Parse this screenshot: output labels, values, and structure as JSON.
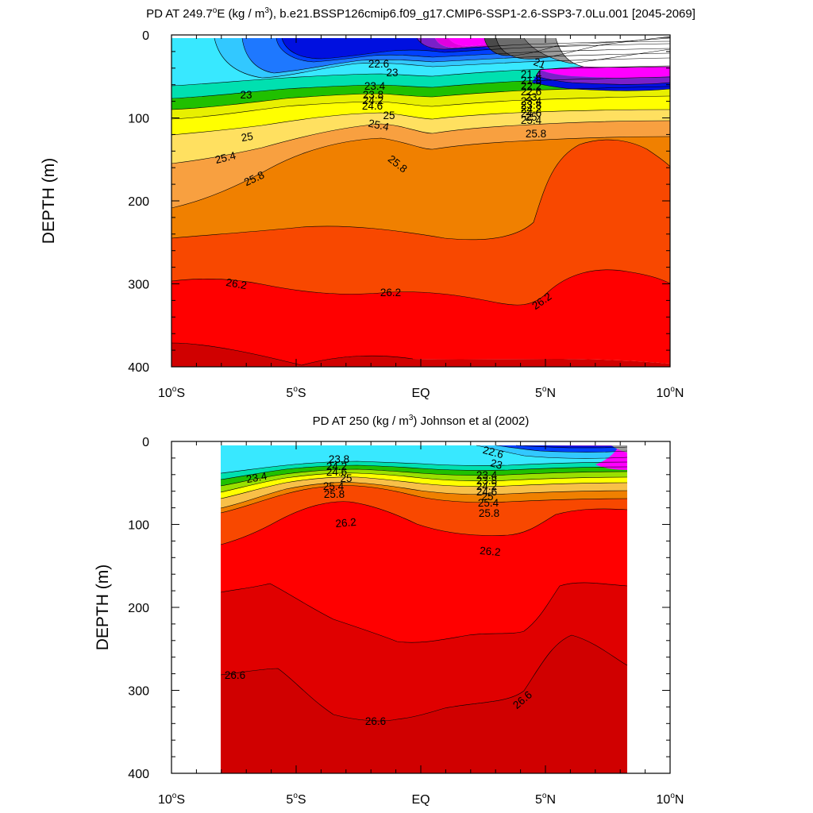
{
  "chart_data": [
    {
      "type": "heatmap",
      "title_pre": "PD AT 249.7",
      "title_deg": "o",
      "title_mid": "E (kg / m",
      "title_sup": "3",
      "title_post": "), b.e21.BSSP126cmip6.f09_g17.CMIP6-SSP1-2.6-SSP3-7.0Lu.001 [2045-2069]",
      "ylabel": "DEPTH (m)",
      "xlim": [
        -10,
        10
      ],
      "ylim": [
        0,
        400
      ],
      "y_inverted": true,
      "data_x_range": [
        -10,
        10
      ],
      "x_ticks": [
        {
          "v": -10,
          "n": "10",
          "d": "S"
        },
        {
          "v": -5,
          "n": "5",
          "d": "S"
        },
        {
          "v": 0,
          "n": "EQ",
          "d": ""
        },
        {
          "v": 5,
          "n": "5",
          "d": "N"
        },
        {
          "v": 10,
          "n": "10",
          "d": "N"
        }
      ],
      "y_ticks": [
        0,
        100,
        200,
        300,
        400
      ],
      "levels": [
        20.8,
        21.0,
        21.2,
        21.4,
        21.6,
        21.8,
        22.0,
        22.2,
        22.4,
        22.6,
        22.8,
        23.0,
        23.2,
        23.4,
        23.6,
        23.8,
        24.0,
        24.2,
        24.4,
        24.6,
        24.8,
        25.0,
        25.2,
        25.4,
        25.6,
        25.8,
        26.0,
        26.2,
        26.4,
        26.6,
        26.8
      ],
      "colors": [
        "#9a9a9a",
        "#6c6c6c",
        "#4a4a4a",
        "#aa00e0",
        "#e000e0",
        "#ff00ff",
        "#c020d0",
        "#7a20c8",
        "#3010c8",
        "#0010e0",
        "#0040ff",
        "#1e78ff",
        "#2aa0ff",
        "#32c8ff",
        "#38e8ff",
        "#00e0b0",
        "#00d060",
        "#20c000",
        "#9ae000",
        "#e8f000",
        "#ffff00",
        "#ffe060",
        "#f8c048",
        "#f8a040",
        "#f89020",
        "#f08000",
        "#f84800",
        "#ff0000",
        "#e80000",
        "#d00000"
      ],
      "isopycnals": [
        {
          "rho": 21.0,
          "y": [
            58,
            58,
            58,
            58,
            58,
            58,
            58,
            56,
            55,
            54,
            48,
            40,
            35,
            32,
            30,
            28
          ]
        },
        {
          "rho": 22.6,
          "y": [
            66,
            66,
            66,
            66,
            66,
            66,
            66,
            64,
            62,
            58,
            54,
            48,
            40,
            32,
            20,
            8
          ]
        },
        {
          "rho": 23.0,
          "y": [
            72,
            72,
            72,
            72,
            72,
            72,
            72,
            71,
            69,
            66,
            63,
            58,
            48,
            40,
            28,
            10
          ]
        },
        {
          "rho": 23.4,
          "y": [
            78,
            78,
            78,
            78,
            78,
            78,
            78,
            76,
            75,
            74,
            72,
            68,
            58,
            48,
            36,
            20
          ]
        },
        {
          "rho": 23.8,
          "y": [
            82,
            82,
            82,
            82,
            82,
            82,
            82,
            80,
            79,
            78,
            76,
            73,
            64,
            54,
            42,
            26
          ]
        },
        {
          "rho": 24.2,
          "y": [
            86,
            86,
            86,
            86,
            86,
            86,
            86,
            84,
            83,
            82,
            80,
            77,
            70,
            60,
            48,
            30
          ]
        },
        {
          "rho": 24.6,
          "y": [
            92,
            92,
            92,
            92,
            92,
            92,
            92,
            89,
            88,
            86,
            84,
            82,
            76,
            66,
            54,
            36
          ]
        },
        {
          "rho": 25.0,
          "y": [
            100,
            100,
            100,
            100,
            100,
            100,
            100,
            97,
            95,
            93,
            91,
            89,
            84,
            74,
            62,
            44
          ]
        },
        {
          "rho": 25.4,
          "y": [
            115,
            115,
            115,
            115,
            115,
            115,
            115,
            110,
            108,
            103,
            100,
            99,
            95,
            84,
            72,
            54
          ]
        },
        {
          "rho": 25.8,
          "y": [
            135,
            135,
            135,
            135,
            135,
            135,
            135,
            130,
            127,
            121,
            115,
            113,
            110,
            100,
            88,
            70
          ]
        },
        {
          "rho": 26.2,
          "y": [
            180,
            180,
            180,
            180,
            180,
            180,
            180,
            170,
            165,
            158,
            150,
            147,
            145,
            135,
            125,
            110
          ]
        },
        {
          "rho": 26.6,
          "y": [
            285,
            285,
            285,
            285,
            285,
            285,
            285,
            278,
            272,
            265,
            255,
            250,
            245,
            238,
            230,
            220
          ]
        }
      ],
      "contour_labels": [
        "22.6",
        "23",
        "23",
        "23.4",
        "23.8",
        "24.2",
        "24.6",
        "25",
        "25",
        "25.4",
        "25.4",
        "25.8",
        "25.8",
        "25.8",
        "26.2",
        "26.2",
        "26.2",
        "21",
        "21.4",
        "21.8",
        "22.2",
        "22.6",
        "23",
        "23.4",
        "23.8",
        "24.2",
        "24.6",
        "25",
        "25.4"
      ],
      "grid": false
    },
    {
      "type": "heatmap",
      "title_pre": "PD AT 250 (kg / m",
      "title_sup": "3",
      "title_post": ") Johnson et al (2002)",
      "ylabel": "DEPTH (m)",
      "xlim": [
        -10,
        10
      ],
      "ylim": [
        0,
        400
      ],
      "y_inverted": true,
      "data_x_range": [
        -8,
        8.2
      ],
      "x_ticks": [
        {
          "v": -10,
          "n": "10",
          "d": "S"
        },
        {
          "v": -5,
          "n": "5",
          "d": "S"
        },
        {
          "v": 0,
          "n": "EQ",
          "d": ""
        },
        {
          "v": 5,
          "n": "5",
          "d": "N"
        },
        {
          "v": 10,
          "n": "10",
          "d": "N"
        }
      ],
      "y_ticks": [
        0,
        100,
        200,
        300,
        400
      ],
      "levels": [
        20.8,
        21.0,
        21.2,
        21.4,
        21.6,
        21.8,
        22.0,
        22.2,
        22.4,
        22.6,
        22.8,
        23.0,
        23.2,
        23.4,
        23.6,
        23.8,
        24.0,
        24.2,
        24.4,
        24.6,
        24.8,
        25.0,
        25.2,
        25.4,
        25.6,
        25.8,
        26.0,
        26.2,
        26.4,
        26.6,
        26.8
      ],
      "colors": [
        "#9a9a9a",
        "#6c6c6c",
        "#4a4a4a",
        "#aa00e0",
        "#e000e0",
        "#ff00ff",
        "#c020d0",
        "#7a20c8",
        "#3010c8",
        "#0010e0",
        "#0040ff",
        "#1e78ff",
        "#2aa0ff",
        "#32c8ff",
        "#38e8ff",
        "#00e0b0",
        "#00d060",
        "#20c000",
        "#9ae000",
        "#e8f000",
        "#ffff00",
        "#ffe060",
        "#f8c048",
        "#f8a040",
        "#f89020",
        "#f08000",
        "#f84800",
        "#ff0000",
        "#e80000",
        "#d00000"
      ],
      "isopycnals": [
        {
          "rho": 22.6,
          "y": [
            10,
            10,
            10,
            10,
            8,
            8,
            6,
            5,
            5,
            5,
            5,
            5,
            5,
            5,
            5,
            5,
            5
          ]
        },
        {
          "rho": 23.0,
          "y": [
            20,
            18,
            15,
            14,
            13,
            12,
            12,
            14,
            15,
            16,
            18,
            20,
            22,
            24,
            26,
            28,
            30
          ]
        },
        {
          "rho": 23.4,
          "y": [
            40,
            36,
            30,
            28,
            26,
            24,
            22,
            25,
            26,
            28,
            30,
            32,
            36,
            40,
            45,
            50,
            52
          ]
        },
        {
          "rho": 23.8,
          "y": [
            48,
            44,
            38,
            35,
            33,
            31,
            29,
            32,
            33,
            34,
            36,
            38,
            42,
            46,
            52,
            56,
            58
          ]
        },
        {
          "rho": 24.2,
          "y": [
            55,
            50,
            44,
            41,
            38,
            36,
            34,
            38,
            39,
            40,
            42,
            44,
            48,
            52,
            58,
            62,
            64
          ]
        },
        {
          "rho": 24.6,
          "y": [
            60,
            56,
            50,
            46,
            43,
            41,
            40,
            44,
            45,
            46,
            48,
            50,
            54,
            58,
            64,
            68,
            70
          ]
        },
        {
          "rho": 25.0,
          "y": [
            68,
            62,
            56,
            52,
            50,
            48,
            47,
            52,
            54,
            55,
            56,
            58,
            62,
            66,
            70,
            74,
            76
          ]
        },
        {
          "rho": 25.4,
          "y": [
            76,
            70,
            64,
            60,
            58,
            56,
            55,
            60,
            62,
            63,
            64,
            66,
            70,
            74,
            78,
            80,
            82
          ]
        },
        {
          "rho": 25.8,
          "y": [
            90,
            82,
            75,
            70,
            66,
            64,
            62,
            68,
            70,
            72,
            74,
            76,
            80,
            84,
            88,
            90,
            90
          ]
        },
        {
          "rho": 26.2,
          "y": [
            130,
            120,
            110,
            100,
            90,
            80,
            75,
            80,
            85,
            92,
            98,
            105,
            110,
            115,
            118,
            120,
            120
          ]
        },
        {
          "rho": 26.6,
          "y": [
            280,
            270,
            265,
            270,
            285,
            300,
            315,
            330,
            340,
            338,
            330,
            320,
            300,
            270,
            240,
            230,
            240
          ]
        }
      ],
      "contour_labels": [
        "23.4",
        "23.8",
        "24.2",
        "24.6",
        "25",
        "25.4",
        "25.8",
        "26.2",
        "22.6",
        "23",
        "23.4",
        "23.8",
        "24.2",
        "24.6",
        "25",
        "25.4",
        "25.8",
        "26.2",
        "26.6",
        "26.6",
        "26.6"
      ],
      "grid": false
    }
  ]
}
